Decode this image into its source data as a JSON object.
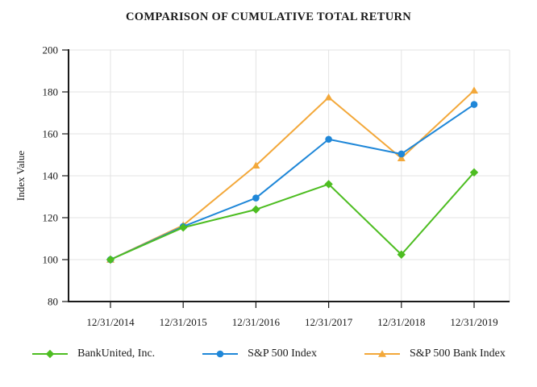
{
  "title": "COMPARISON OF CUMULATIVE TOTAL RETURN",
  "chart_data": {
    "type": "line",
    "title": "COMPARISON OF CUMULATIVE TOTAL RETURN",
    "xlabel": "",
    "ylabel": "Index Value",
    "categories": [
      "12/31/2014",
      "12/31/2015",
      "12/31/2016",
      "12/31/2017",
      "12/31/2018",
      "12/31/2019"
    ],
    "series": [
      {
        "name": "BankUnited, Inc.",
        "marker": "diamond",
        "color": "#4dbd21",
        "values": [
          100,
          115.3,
          123.9,
          136.0,
          102.4,
          141.6
        ]
      },
      {
        "name": "S&P 500 Index",
        "marker": "circle",
        "color": "#1f87d8",
        "values": [
          100,
          115.8,
          129.4,
          157.4,
          150.4,
          174.0
        ]
      },
      {
        "name": "S&P 500 Bank Index",
        "marker": "triangle",
        "color": "#f3a83a",
        "values": [
          100,
          116.4,
          144.9,
          177.4,
          148.4,
          180.7
        ]
      }
    ],
    "ylim": [
      80,
      200
    ],
    "ytick_step": 20,
    "grid": true,
    "legend_position": "bottom"
  },
  "colors": {
    "axis": "#1a1a1a",
    "grid": "#e3e3e3",
    "background": "#ffffff"
  }
}
